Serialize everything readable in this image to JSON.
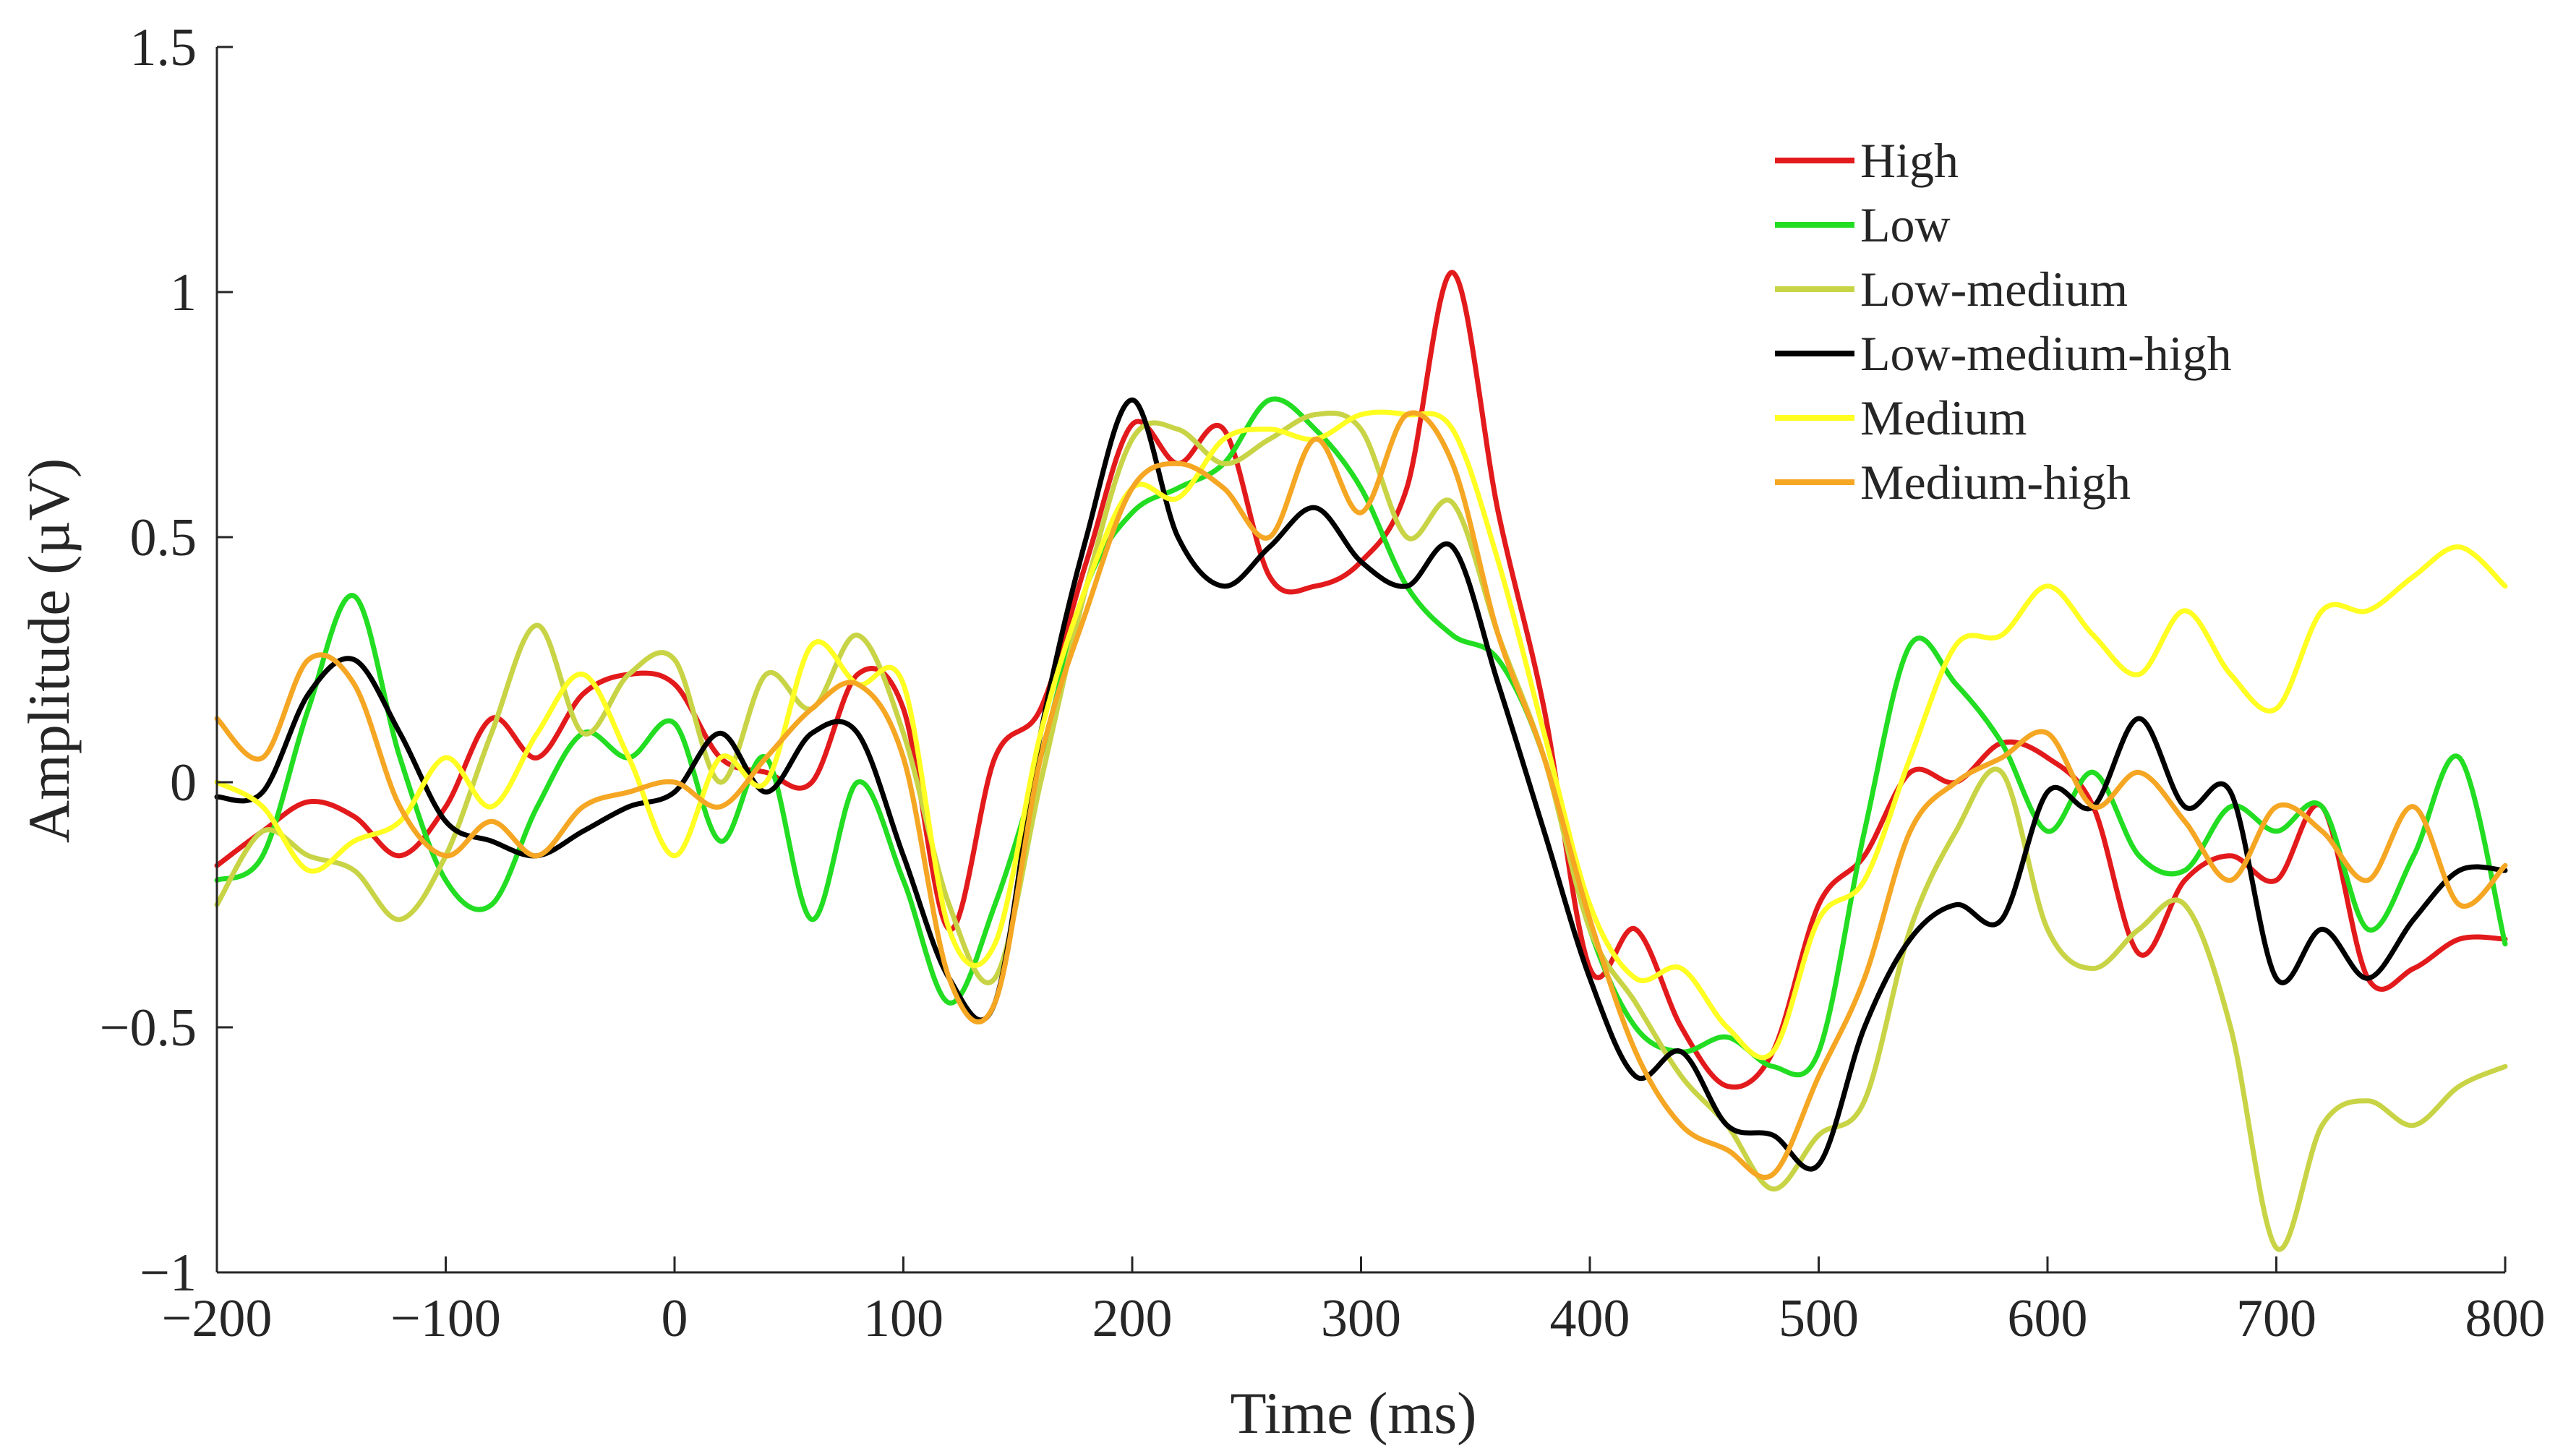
{
  "chart_data": {
    "type": "line",
    "title": "",
    "xlabel": "Time (ms)",
    "ylabel": "Amplitude (µV)",
    "xlim": [
      -200,
      800
    ],
    "ylim": [
      -1,
      1.5
    ],
    "xticks": [
      -200,
      -100,
      0,
      100,
      200,
      300,
      400,
      500,
      600,
      700,
      800
    ],
    "xtick_labels": [
      "−200",
      "−100",
      "0",
      "100",
      "200",
      "300",
      "400",
      "500",
      "600",
      "700",
      "800"
    ],
    "yticks": [
      -1,
      -0.5,
      0,
      0.5,
      1,
      1.5
    ],
    "ytick_labels": [
      "−1",
      "−0.5",
      "0",
      "0.5",
      "1",
      "1.5"
    ],
    "grid": false,
    "legend_position": "top-right",
    "x": [
      -200,
      -180,
      -160,
      -140,
      -120,
      -100,
      -80,
      -60,
      -40,
      -20,
      0,
      20,
      40,
      60,
      80,
      100,
      120,
      140,
      160,
      180,
      200,
      220,
      240,
      260,
      280,
      300,
      320,
      340,
      360,
      380,
      400,
      420,
      440,
      460,
      480,
      500,
      520,
      540,
      560,
      580,
      600,
      620,
      640,
      660,
      680,
      700,
      720,
      740,
      760,
      780,
      800
    ],
    "series": [
      {
        "name": "High",
        "color": "#e31a1c",
        "values": [
          -0.17,
          -0.1,
          -0.04,
          -0.07,
          -0.15,
          -0.05,
          0.13,
          0.05,
          0.18,
          0.22,
          0.2,
          0.05,
          0.02,
          0.0,
          0.22,
          0.15,
          -0.3,
          0.05,
          0.15,
          0.45,
          0.73,
          0.65,
          0.72,
          0.42,
          0.4,
          0.45,
          0.6,
          1.04,
          0.55,
          0.15,
          -0.38,
          -0.3,
          -0.5,
          -0.62,
          -0.55,
          -0.25,
          -0.15,
          0.02,
          0.0,
          0.08,
          0.05,
          -0.05,
          -0.35,
          -0.2,
          -0.15,
          -0.2,
          -0.05,
          -0.4,
          -0.38,
          -0.32,
          -0.32
        ]
      },
      {
        "name": "Low",
        "color": "#22dd22",
        "values": [
          -0.2,
          -0.15,
          0.15,
          0.38,
          0.05,
          -0.2,
          -0.25,
          -0.05,
          0.1,
          0.05,
          0.12,
          -0.12,
          0.05,
          -0.28,
          0.0,
          -0.2,
          -0.45,
          -0.25,
          0.05,
          0.4,
          0.55,
          0.6,
          0.65,
          0.78,
          0.72,
          0.6,
          0.4,
          0.3,
          0.25,
          0.05,
          -0.3,
          -0.5,
          -0.55,
          -0.52,
          -0.58,
          -0.55,
          -0.1,
          0.28,
          0.2,
          0.08,
          -0.1,
          0.02,
          -0.15,
          -0.18,
          -0.05,
          -0.1,
          -0.05,
          -0.3,
          -0.15,
          0.05,
          -0.33
        ]
      },
      {
        "name": "Low-medium",
        "color": "#c8d446",
        "values": [
          -0.25,
          -0.1,
          -0.15,
          -0.18,
          -0.28,
          -0.15,
          0.1,
          0.32,
          0.1,
          0.22,
          0.25,
          0.0,
          0.22,
          0.15,
          0.3,
          0.1,
          -0.25,
          -0.4,
          0.0,
          0.4,
          0.7,
          0.72,
          0.65,
          0.7,
          0.75,
          0.72,
          0.5,
          0.57,
          0.3,
          0.05,
          -0.3,
          -0.45,
          -0.6,
          -0.7,
          -0.83,
          -0.72,
          -0.65,
          -0.3,
          -0.1,
          0.02,
          -0.3,
          -0.38,
          -0.3,
          -0.25,
          -0.5,
          -0.95,
          -0.7,
          -0.65,
          -0.7,
          -0.62,
          -0.58
        ]
      },
      {
        "name": "Low-medium-high",
        "color": "#000000",
        "values": [
          -0.03,
          -0.02,
          0.18,
          0.25,
          0.1,
          -0.08,
          -0.12,
          -0.15,
          -0.1,
          -0.05,
          -0.02,
          0.1,
          -0.02,
          0.1,
          0.1,
          -0.15,
          -0.4,
          -0.45,
          0.1,
          0.5,
          0.78,
          0.5,
          0.4,
          0.48,
          0.56,
          0.45,
          0.4,
          0.48,
          0.2,
          -0.1,
          -0.4,
          -0.6,
          -0.55,
          -0.7,
          -0.72,
          -0.78,
          -0.5,
          -0.32,
          -0.25,
          -0.28,
          -0.02,
          -0.05,
          0.13,
          -0.05,
          -0.02,
          -0.4,
          -0.3,
          -0.4,
          -0.28,
          -0.18,
          -0.18
        ]
      },
      {
        "name": "Medium",
        "color": "#ffff22",
        "values": [
          0.0,
          -0.05,
          -0.18,
          -0.12,
          -0.08,
          0.05,
          -0.05,
          0.1,
          0.22,
          0.05,
          -0.15,
          0.05,
          0.0,
          0.28,
          0.2,
          0.2,
          -0.3,
          -0.33,
          0.1,
          0.4,
          0.6,
          0.58,
          0.7,
          0.72,
          0.7,
          0.75,
          0.75,
          0.72,
          0.45,
          0.1,
          -0.25,
          -0.4,
          -0.38,
          -0.5,
          -0.55,
          -0.28,
          -0.2,
          0.05,
          0.28,
          0.3,
          0.4,
          0.3,
          0.22,
          0.35,
          0.22,
          0.15,
          0.35,
          0.35,
          0.42,
          0.48,
          0.4
        ]
      },
      {
        "name": "Medium-high",
        "color": "#f5a623",
        "values": [
          0.13,
          0.05,
          0.25,
          0.2,
          -0.05,
          -0.15,
          -0.08,
          -0.15,
          -0.05,
          -0.02,
          0.0,
          -0.05,
          0.05,
          0.15,
          0.2,
          0.05,
          -0.4,
          -0.45,
          0.05,
          0.35,
          0.6,
          0.65,
          0.6,
          0.5,
          0.7,
          0.55,
          0.75,
          0.65,
          0.3,
          0.05,
          -0.28,
          -0.55,
          -0.7,
          -0.75,
          -0.8,
          -0.6,
          -0.4,
          -0.1,
          0.0,
          0.05,
          0.1,
          -0.05,
          0.02,
          -0.08,
          -0.2,
          -0.05,
          -0.1,
          -0.2,
          -0.05,
          -0.25,
          -0.17
        ]
      }
    ]
  }
}
